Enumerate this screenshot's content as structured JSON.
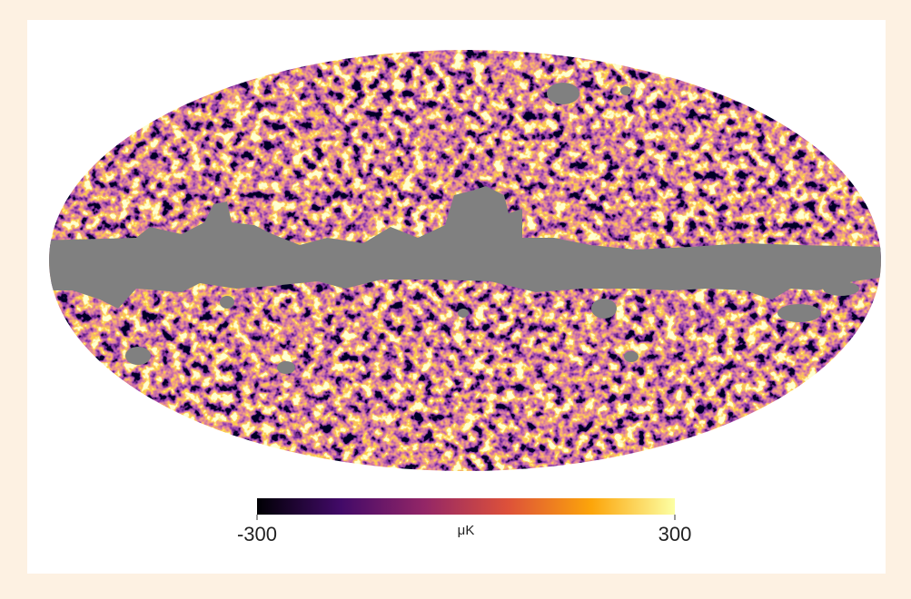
{
  "colorbar": {
    "unit": "μK",
    "lim": [
      -300,
      300
    ],
    "ticks": [
      -300,
      300
    ]
  }
}
